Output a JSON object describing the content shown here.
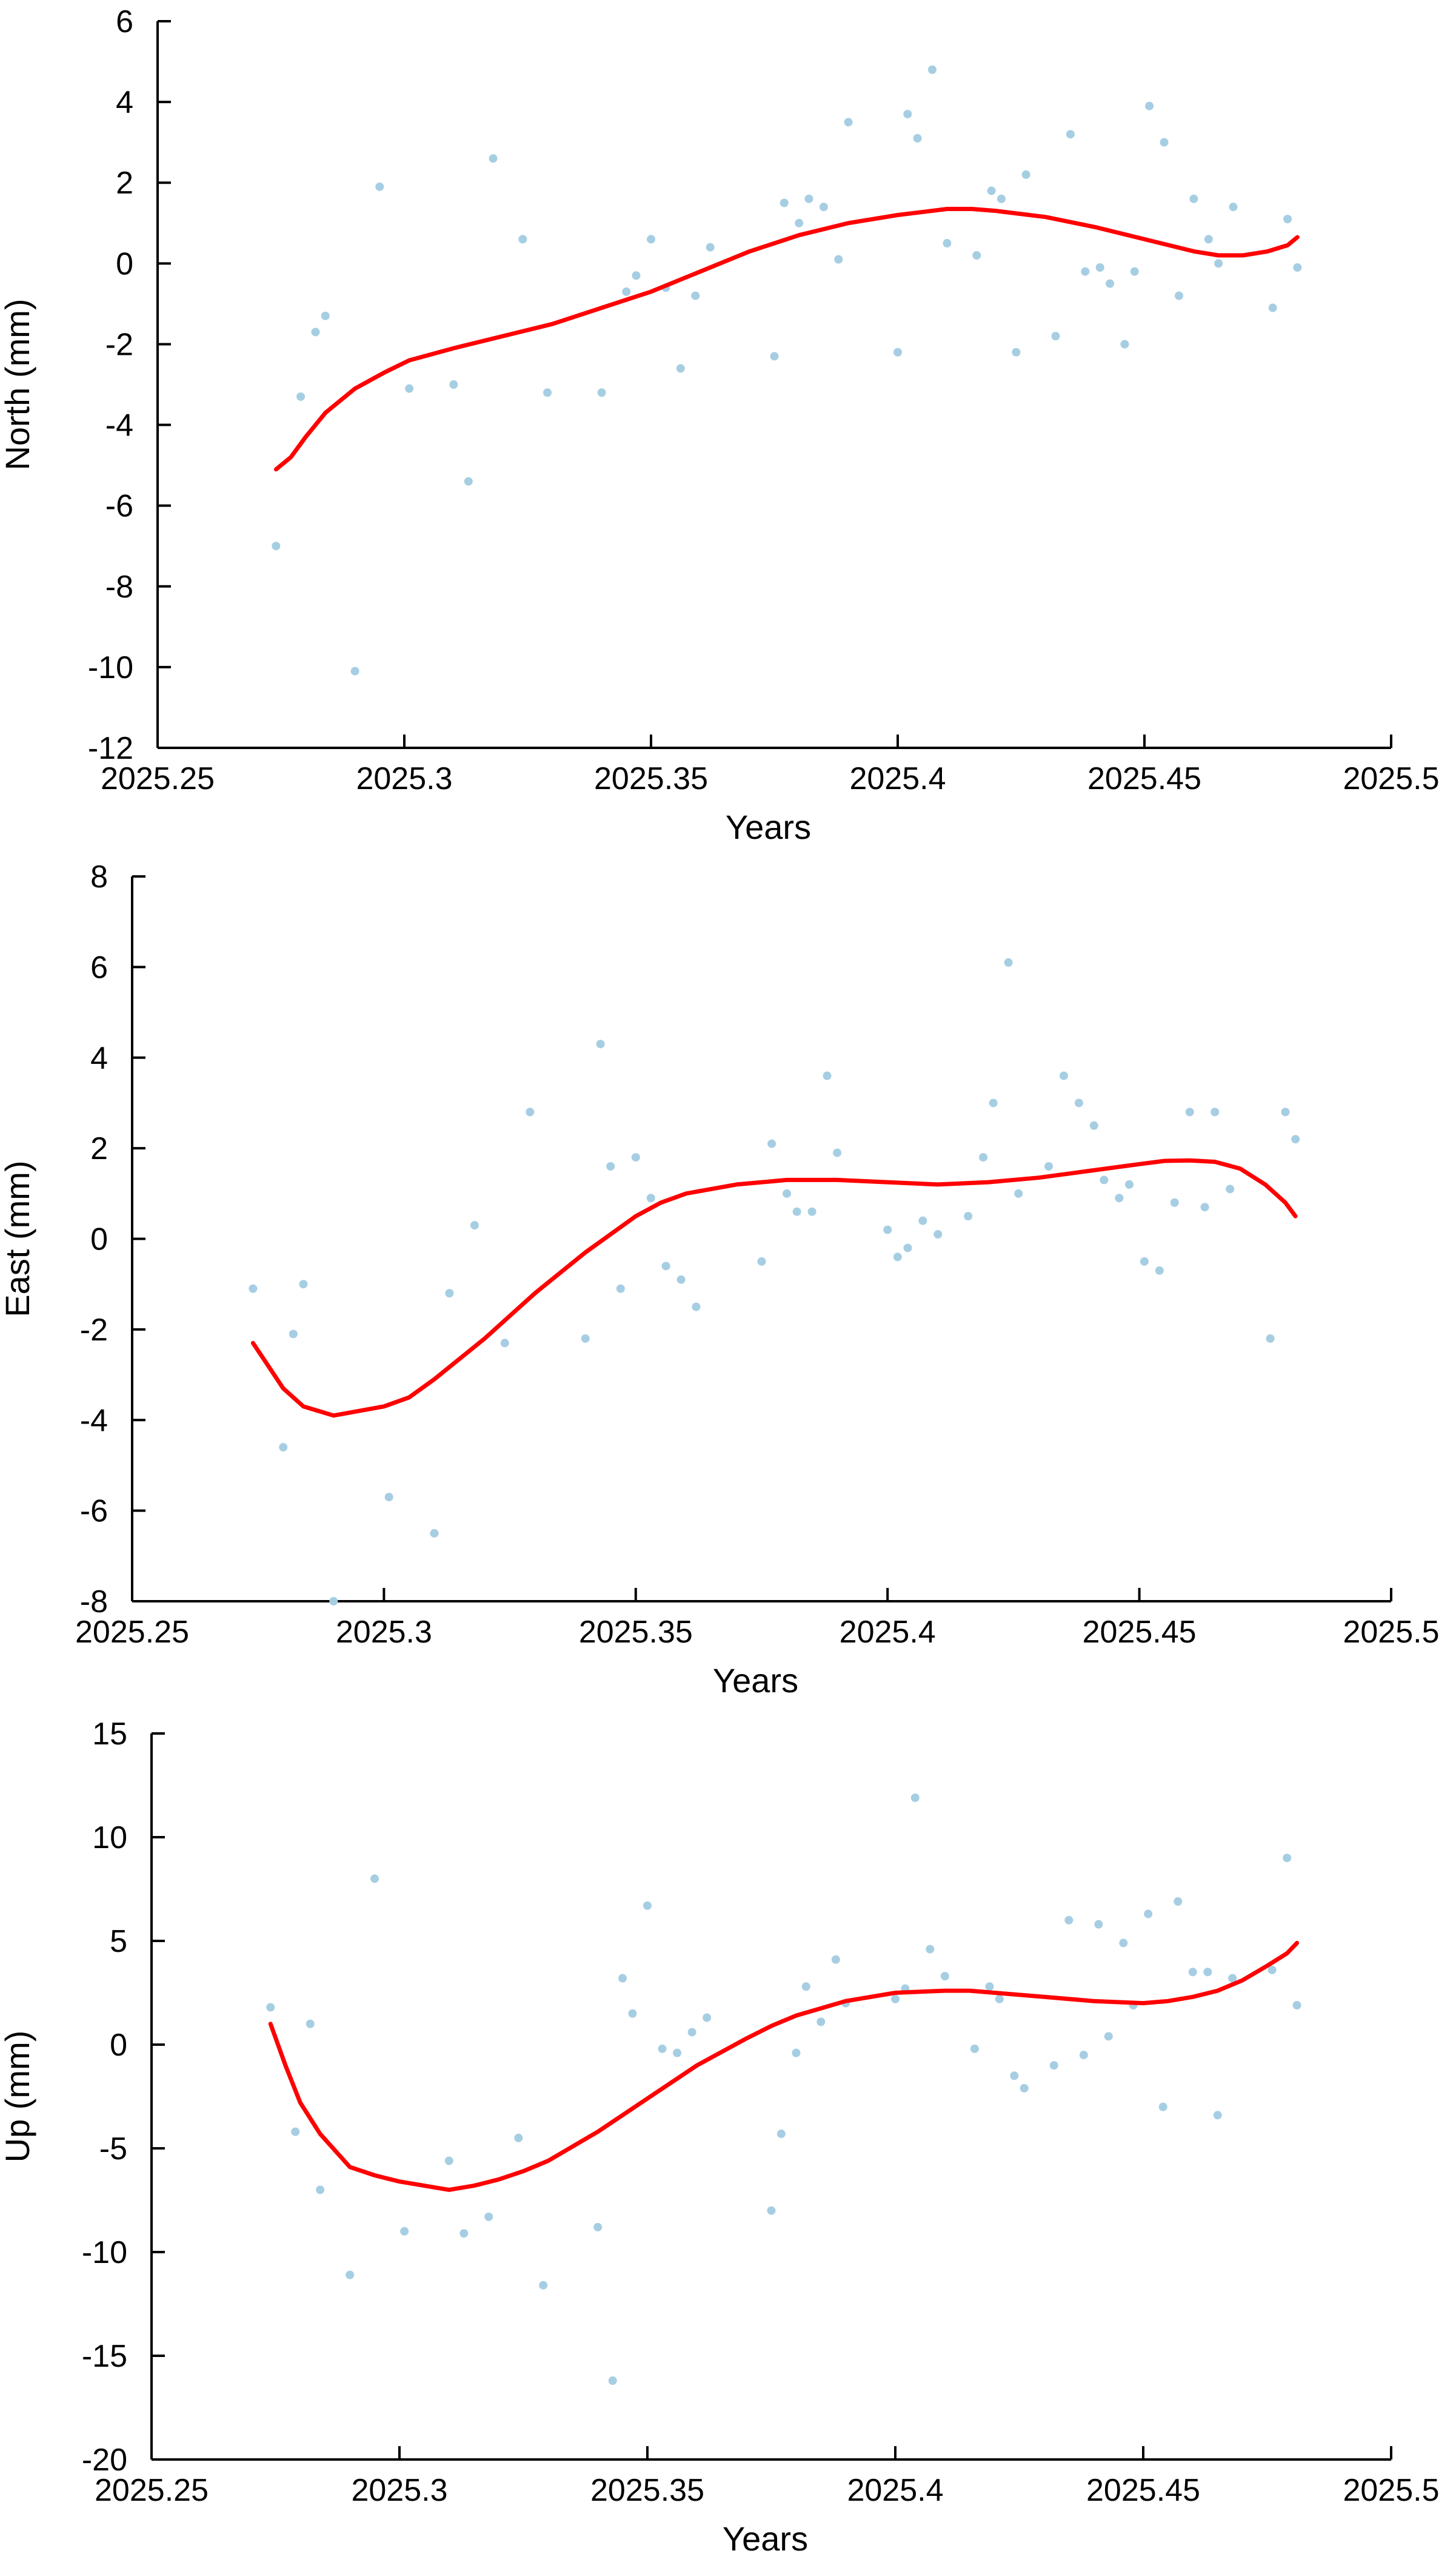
{
  "colors": {
    "points": "#a6cee3",
    "fit_line": "#ff0000",
    "axis": "#000000"
  },
  "chart_data": [
    {
      "type": "scatter",
      "id": "north",
      "xlabel": "Years",
      "ylabel": "North (mm)",
      "xlim": [
        2025.25,
        2025.5
      ],
      "ylim": [
        -12,
        6
      ],
      "xticks": [
        2025.25,
        2025.3,
        2025.35,
        2025.4,
        2025.45,
        2025.5
      ],
      "xtick_labels": [
        "2025.25",
        "2025.3",
        "2025.35",
        "2025.4",
        "2025.45",
        "2025.5"
      ],
      "yticks": [
        -12,
        -10,
        -8,
        -6,
        -4,
        -2,
        0,
        2,
        4,
        6
      ],
      "ytick_labels": [
        "-12",
        "-10",
        "-8",
        "-6",
        "-4",
        "-2",
        "0",
        "2",
        "4",
        "6"
      ],
      "grid": false,
      "series": [
        {
          "kind": "points",
          "x": [
            2025.274,
            2025.279,
            2025.282,
            2025.284,
            2025.29,
            2025.295,
            2025.301,
            2025.31,
            2025.313,
            2025.318,
            2025.324,
            2025.329,
            2025.34,
            2025.345,
            2025.347,
            2025.35,
            2025.353,
            2025.356,
            2025.359,
            2025.362,
            2025.375,
            2025.377,
            2025.38,
            2025.382,
            2025.385,
            2025.388,
            2025.39,
            2025.4,
            2025.402,
            2025.404,
            2025.407,
            2025.41,
            2025.416,
            2025.419,
            2025.421,
            2025.424,
            2025.426,
            2025.432,
            2025.435,
            2025.438,
            2025.441,
            2025.443,
            2025.446,
            2025.448,
            2025.451,
            2025.454,
            2025.457,
            2025.46,
            2025.463,
            2025.465,
            2025.468,
            2025.476,
            2025.479,
            2025.481
          ],
          "y": [
            -7.0,
            -3.3,
            -1.7,
            -1.3,
            -10.1,
            1.9,
            -3.1,
            -3.0,
            -5.4,
            2.6,
            0.6,
            -3.2,
            -3.2,
            -0.7,
            -0.3,
            0.6,
            -0.6,
            -2.6,
            -0.8,
            0.4,
            -2.3,
            1.5,
            1.0,
            1.6,
            1.4,
            0.1,
            3.5,
            -2.2,
            3.7,
            3.1,
            4.8,
            0.5,
            0.2,
            1.8,
            1.6,
            -2.2,
            2.2,
            -1.8,
            3.2,
            -0.2,
            -0.1,
            -0.5,
            -2.0,
            -0.2,
            3.9,
            3.0,
            -0.8,
            1.6,
            0.6,
            0.0,
            1.4,
            -1.1,
            1.1,
            -0.1
          ]
        },
        {
          "kind": "line",
          "x": [
            2025.274,
            2025.277,
            2025.28,
            2025.284,
            2025.29,
            2025.296,
            2025.301,
            2025.31,
            2025.32,
            2025.33,
            2025.34,
            2025.35,
            2025.36,
            2025.37,
            2025.38,
            2025.39,
            2025.4,
            2025.41,
            2025.415,
            2025.42,
            2025.43,
            2025.44,
            2025.45,
            2025.455,
            2025.46,
            2025.465,
            2025.47,
            2025.475,
            2025.479,
            2025.481
          ],
          "y": [
            -5.1,
            -4.8,
            -4.3,
            -3.7,
            -3.1,
            -2.7,
            -2.4,
            -2.1,
            -1.8,
            -1.5,
            -1.1,
            -0.7,
            -0.2,
            0.3,
            0.7,
            1.0,
            1.2,
            1.35,
            1.35,
            1.3,
            1.15,
            0.9,
            0.6,
            0.45,
            0.3,
            0.2,
            0.2,
            0.3,
            0.45,
            0.65
          ]
        }
      ]
    },
    {
      "type": "scatter",
      "id": "east",
      "xlabel": "Years",
      "ylabel": "East (mm)",
      "xlim": [
        2025.25,
        2025.5
      ],
      "ylim": [
        -8,
        8
      ],
      "xticks": [
        2025.25,
        2025.3,
        2025.35,
        2025.4,
        2025.45,
        2025.5
      ],
      "xtick_labels": [
        "2025.25",
        "2025.3",
        "2025.35",
        "2025.4",
        "2025.45",
        "2025.5"
      ],
      "yticks": [
        -8,
        -6,
        -4,
        -2,
        0,
        2,
        4,
        6,
        8
      ],
      "ytick_labels": [
        "-8",
        "-6",
        "-4",
        "-2",
        "0",
        "2",
        "4",
        "6",
        "8"
      ],
      "grid": false,
      "series": [
        {
          "kind": "points",
          "x": [
            2025.274,
            2025.28,
            2025.282,
            2025.284,
            2025.29,
            2025.301,
            2025.31,
            2025.313,
            2025.318,
            2025.324,
            2025.329,
            2025.34,
            2025.343,
            2025.345,
            2025.347,
            2025.35,
            2025.353,
            2025.356,
            2025.359,
            2025.362,
            2025.375,
            2025.377,
            2025.38,
            2025.382,
            2025.385,
            2025.388,
            2025.39,
            2025.4,
            2025.402,
            2025.404,
            2025.407,
            2025.41,
            2025.416,
            2025.419,
            2025.421,
            2025.424,
            2025.426,
            2025.432,
            2025.435,
            2025.438,
            2025.441,
            2025.443,
            2025.446,
            2025.448,
            2025.451,
            2025.454,
            2025.457,
            2025.46,
            2025.463,
            2025.465,
            2025.468,
            2025.476,
            2025.479,
            2025.481
          ],
          "y": [
            -1.1,
            -4.6,
            -2.1,
            -1.0,
            -8.0,
            -5.7,
            -6.5,
            -1.2,
            0.3,
            -2.3,
            2.8,
            -2.2,
            4.3,
            1.6,
            -1.1,
            1.8,
            0.9,
            -0.6,
            -0.9,
            -1.5,
            -0.5,
            2.1,
            1.0,
            0.6,
            0.6,
            3.6,
            1.9,
            0.2,
            -0.4,
            -0.2,
            0.4,
            0.1,
            0.5,
            1.8,
            3.0,
            6.1,
            1.0,
            1.6,
            3.6,
            3.0,
            2.5,
            1.3,
            0.9,
            1.2,
            -0.5,
            -0.7,
            0.8,
            2.8,
            0.7,
            2.8,
            1.1,
            -2.2,
            2.8,
            2.2
          ]
        },
        {
          "kind": "line",
          "x": [
            2025.274,
            2025.277,
            2025.28,
            2025.284,
            2025.29,
            2025.295,
            2025.3,
            2025.305,
            2025.31,
            2025.32,
            2025.33,
            2025.34,
            2025.35,
            2025.355,
            2025.36,
            2025.37,
            2025.38,
            2025.39,
            2025.4,
            2025.41,
            2025.42,
            2025.43,
            2025.44,
            2025.45,
            2025.455,
            2025.46,
            2025.465,
            2025.47,
            2025.475,
            2025.479,
            2025.481
          ],
          "y": [
            -2.3,
            -2.8,
            -3.3,
            -3.7,
            -3.9,
            -3.8,
            -3.7,
            -3.5,
            -3.1,
            -2.2,
            -1.2,
            -0.3,
            0.5,
            0.8,
            1.0,
            1.2,
            1.3,
            1.3,
            1.25,
            1.2,
            1.25,
            1.35,
            1.5,
            1.65,
            1.72,
            1.73,
            1.7,
            1.55,
            1.2,
            0.8,
            0.5
          ]
        }
      ]
    },
    {
      "type": "scatter",
      "id": "up",
      "xlabel": "Years",
      "ylabel": "Up (mm)",
      "xlim": [
        2025.25,
        2025.5
      ],
      "ylim": [
        -20,
        15
      ],
      "xticks": [
        2025.25,
        2025.3,
        2025.35,
        2025.4,
        2025.45,
        2025.5
      ],
      "xtick_labels": [
        "2025.25",
        "2025.3",
        "2025.35",
        "2025.4",
        "2025.45",
        "2025.5"
      ],
      "yticks": [
        -20,
        -15,
        -10,
        -5,
        0,
        5,
        10,
        15
      ],
      "ytick_labels": [
        "-20",
        "-15",
        "-10",
        "-5",
        "0",
        "5",
        "10",
        "15"
      ],
      "grid": false,
      "series": [
        {
          "kind": "points",
          "x": [
            2025.274,
            2025.279,
            2025.282,
            2025.284,
            2025.29,
            2025.295,
            2025.301,
            2025.31,
            2025.313,
            2025.318,
            2025.324,
            2025.329,
            2025.34,
            2025.343,
            2025.345,
            2025.347,
            2025.35,
            2025.353,
            2025.356,
            2025.359,
            2025.362,
            2025.375,
            2025.377,
            2025.38,
            2025.382,
            2025.385,
            2025.388,
            2025.39,
            2025.4,
            2025.402,
            2025.404,
            2025.407,
            2025.41,
            2025.416,
            2025.419,
            2025.421,
            2025.424,
            2025.426,
            2025.432,
            2025.435,
            2025.438,
            2025.441,
            2025.443,
            2025.446,
            2025.448,
            2025.451,
            2025.454,
            2025.457,
            2025.46,
            2025.463,
            2025.465,
            2025.468,
            2025.476,
            2025.479,
            2025.481
          ],
          "y": [
            1.8,
            -4.2,
            1.0,
            -7.0,
            -11.1,
            8.0,
            -9.0,
            -5.6,
            -9.1,
            -8.3,
            -4.5,
            -11.6,
            -8.8,
            -16.2,
            3.2,
            1.5,
            6.7,
            -0.2,
            -0.4,
            0.6,
            1.3,
            -8.0,
            -4.3,
            -0.4,
            2.8,
            1.1,
            4.1,
            2.0,
            2.2,
            2.7,
            11.9,
            4.6,
            3.3,
            -0.2,
            2.8,
            2.2,
            -1.5,
            -2.1,
            -1.0,
            6.0,
            -0.5,
            5.8,
            0.4,
            4.9,
            1.9,
            6.3,
            -3.0,
            6.9,
            3.5,
            3.5,
            -3.4,
            3.2,
            3.6,
            9.0,
            1.9
          ]
        },
        {
          "kind": "line",
          "x": [
            2025.274,
            2025.277,
            2025.28,
            2025.284,
            2025.29,
            2025.295,
            2025.3,
            2025.305,
            2025.31,
            2025.315,
            2025.32,
            2025.325,
            2025.33,
            2025.34,
            2025.35,
            2025.36,
            2025.37,
            2025.375,
            2025.38,
            2025.39,
            2025.4,
            2025.41,
            2025.415,
            2025.42,
            2025.43,
            2025.44,
            2025.45,
            2025.455,
            2025.46,
            2025.465,
            2025.47,
            2025.475,
            2025.479,
            2025.481
          ],
          "y": [
            1.0,
            -1.0,
            -2.8,
            -4.3,
            -5.9,
            -6.3,
            -6.6,
            -6.8,
            -7.0,
            -6.8,
            -6.5,
            -6.1,
            -5.6,
            -4.2,
            -2.6,
            -1.0,
            0.3,
            0.9,
            1.4,
            2.1,
            2.5,
            2.6,
            2.6,
            2.5,
            2.3,
            2.1,
            2.0,
            2.1,
            2.3,
            2.6,
            3.1,
            3.8,
            4.4,
            4.9
          ]
        }
      ]
    }
  ]
}
